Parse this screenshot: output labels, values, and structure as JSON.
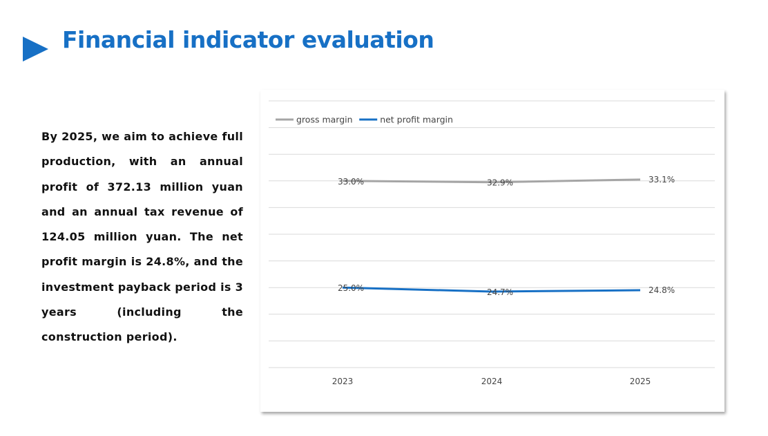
{
  "page": {
    "title": "Financial indicator evaluation",
    "body": "By 2025, we aim to achieve full production, with an annual profit of 372.13 million yuan and an annual tax revenue of 124.05 million yuan. The net profit margin is 24.8%, and the investment payback period is 3 years (including the construction period).",
    "accent_color": "#1770c5"
  },
  "chart_data": {
    "type": "line",
    "categories": [
      "2023",
      "2024",
      "2025"
    ],
    "series": [
      {
        "name": "gross margin",
        "values": [
          33.0,
          32.9,
          33.1
        ],
        "labels": [
          "33.0%",
          "32.9%",
          "33.1%"
        ],
        "color": "#a5a5a5"
      },
      {
        "name": "net profit margin",
        "values": [
          25.0,
          24.7,
          24.8
        ],
        "labels": [
          "25.0%",
          "24.7%",
          "24.8%"
        ],
        "color": "#1770c5"
      }
    ],
    "title": "",
    "xlabel": "",
    "ylabel": "",
    "ylim": [
      19,
      39
    ],
    "grid": true,
    "legend": "top-left"
  }
}
